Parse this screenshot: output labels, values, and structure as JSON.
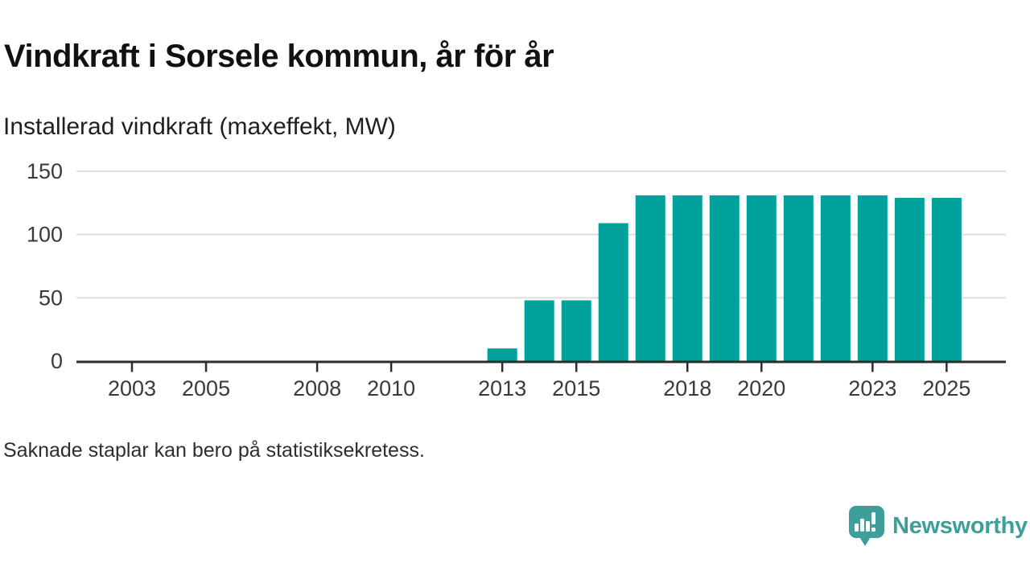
{
  "title": "Vindkraft i Sorsele kommun, år för år",
  "subtitle": "Installerad vindkraft (maxeffekt, MW)",
  "footnote": "Saknade staplar kan bero på statistiksekretess.",
  "branding": {
    "name": "Newsworthy",
    "icon": "speech-bubble-bar-chart-exclamation"
  },
  "colors": {
    "bar": "#00a29b",
    "axis": "#2d2d2d",
    "grid": "#dedede",
    "tick_label": "#3a3a3a",
    "title_text": "#111111",
    "brand_teal": "#3d9e9a",
    "background": "#ffffff"
  },
  "chart_data": {
    "type": "bar",
    "title": "Vindkraft i Sorsele kommun, år för år",
    "subtitle": "Installerad vindkraft (maxeffekt, MW)",
    "unit": "MW",
    "categories": [
      2013,
      2014,
      2015,
      2016,
      2017,
      2018,
      2019,
      2020,
      2021,
      2022,
      2023,
      2024,
      2025
    ],
    "values": [
      10,
      48,
      48,
      109,
      131,
      131,
      131,
      131,
      131,
      131,
      131,
      129,
      129
    ],
    "x_ticks": [
      2003,
      2005,
      2008,
      2010,
      2013,
      2015,
      2018,
      2020,
      2023,
      2025
    ],
    "y_ticks": [
      0,
      50,
      100,
      150
    ],
    "xlim": [
      2001.5,
      2026.6
    ],
    "ylim": [
      0,
      150
    ],
    "grid": "horizontal-only",
    "legend": "none",
    "xlabel": "",
    "ylabel": ""
  }
}
